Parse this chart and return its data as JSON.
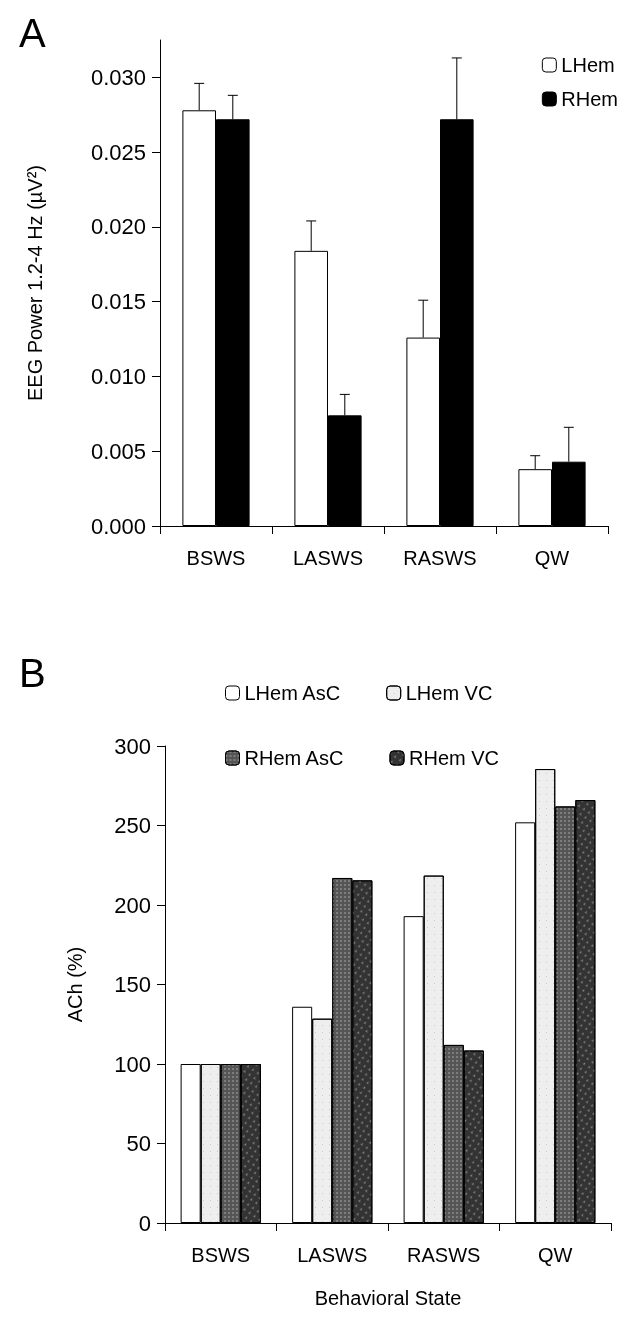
{
  "chart_data": [
    {
      "type": "bar",
      "title": "A",
      "ylabel": "EEG Power 1.2-4 Hz (µV²)",
      "categories": [
        "BSWS",
        "LASWS",
        "RASWS",
        "QW"
      ],
      "series": [
        {
          "name": "LHem",
          "color": "#ffffff",
          "values": [
            0.0278,
            0.0184,
            0.0126,
            0.0038
          ],
          "errors": [
            [
              0.0278,
              0.0296
            ],
            [
              0.0184,
              0.0204
            ],
            [
              0.0126,
              0.0151
            ],
            [
              0.0038,
              0.0047
            ]
          ]
        },
        {
          "name": "RHem",
          "color": "#000000",
          "values": [
            0.0272,
            0.0074,
            0.0272,
            0.0043
          ],
          "errors": [
            [
              0.0272,
              0.0288
            ],
            [
              0.0074,
              0.0088
            ],
            [
              0.0272,
              0.0313
            ],
            [
              0.0043,
              0.0066
            ]
          ]
        }
      ],
      "ylim": [
        0,
        0.0325
      ],
      "yticks": [
        {
          "value": 0,
          "label": "0.000"
        },
        {
          "value": 0.005,
          "label": "0.005"
        },
        {
          "value": 0.01,
          "label": "0.010"
        },
        {
          "value": 0.015,
          "label": "0.015"
        },
        {
          "value": 0.02,
          "label": "0.020"
        },
        {
          "value": 0.025,
          "label": "0.025"
        },
        {
          "value": 0.03,
          "label": "0.030"
        }
      ],
      "grid": false,
      "legend": "top right"
    },
    {
      "type": "bar",
      "title": "B",
      "xlabel": "Behavioral State",
      "ylabel": "ACh (%)",
      "categories": [
        "BSWS",
        "LASWS",
        "RASWS",
        "QW"
      ],
      "series": [
        {
          "name": "LHem AsC",
          "color": "#ffffff",
          "values": [
            100,
            136,
            193,
            252
          ]
        },
        {
          "name": "LHem VC",
          "color": "#eeeeee",
          "values": [
            100,
            128.5,
            218.5,
            285.5
          ]
        },
        {
          "name": "RHem AsC",
          "color": "#555555",
          "values": [
            100,
            217,
            112,
            262
          ]
        },
        {
          "name": "RHem VC",
          "color": "#333333",
          "values": [
            100,
            215.5,
            108.5,
            266
          ]
        }
      ],
      "ylim": [
        0,
        300
      ],
      "yticks": [
        0,
        50,
        100,
        150,
        200,
        250,
        300
      ],
      "grid": false,
      "legend": "top"
    }
  ]
}
